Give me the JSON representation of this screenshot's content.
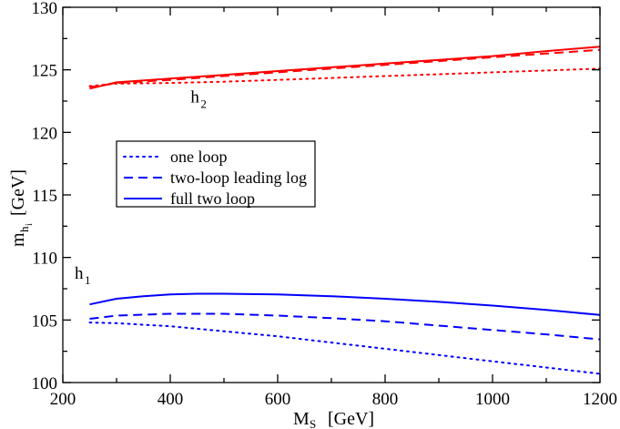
{
  "chart_data": {
    "type": "line",
    "xlabel": {
      "main": "M",
      "sub": "S",
      "unit": "[GeV]"
    },
    "ylabel": {
      "main": "m",
      "sub": "h",
      "subsub": "i",
      "unit": "[GeV]"
    },
    "xlim": [
      200,
      1200
    ],
    "ylim": [
      100,
      130
    ],
    "xticks": [
      200,
      400,
      600,
      800,
      1000,
      1200
    ],
    "yticks": [
      100,
      105,
      110,
      115,
      120,
      125,
      130
    ],
    "legend": {
      "placement": "center-left",
      "entries": [
        {
          "label": "one loop",
          "style": "dotted"
        },
        {
          "label": "two-loop leading log",
          "style": "dashed"
        },
        {
          "label": "full two loop",
          "style": "solid"
        }
      ]
    },
    "annotations": [
      {
        "main": "h",
        "sub": "2",
        "x": 438,
        "y": 122.4
      },
      {
        "main": "h",
        "sub": "1",
        "x": 222,
        "y": 108.3
      }
    ],
    "colors": {
      "h1": "#0000ff",
      "h2": "#ff0000"
    },
    "series": [
      {
        "group": "h2",
        "style": "dotted",
        "color": "#ff0000",
        "x": [
          250,
          300,
          400,
          500,
          600,
          700,
          800,
          900,
          1000,
          1100,
          1200
        ],
        "y": [
          123.7,
          123.9,
          123.95,
          124.05,
          124.2,
          124.35,
          124.5,
          124.65,
          124.8,
          124.95,
          125.1
        ]
      },
      {
        "group": "h2",
        "style": "dashed",
        "color": "#ff0000",
        "x": [
          250,
          300,
          400,
          500,
          600,
          700,
          800,
          900,
          1000,
          1100,
          1200
        ],
        "y": [
          123.6,
          123.95,
          124.2,
          124.5,
          124.8,
          125.1,
          125.4,
          125.7,
          126.0,
          126.3,
          126.6
        ]
      },
      {
        "group": "h2",
        "style": "solid",
        "color": "#ff0000",
        "x": [
          250,
          300,
          400,
          500,
          600,
          700,
          800,
          900,
          1000,
          1100,
          1200
        ],
        "y": [
          123.5,
          124.0,
          124.3,
          124.6,
          124.9,
          125.2,
          125.5,
          125.8,
          126.1,
          126.5,
          126.85
        ]
      },
      {
        "group": "h1",
        "style": "dotted",
        "color": "#0000ff",
        "x": [
          250,
          300,
          400,
          500,
          600,
          700,
          800,
          900,
          1000,
          1100,
          1200
        ],
        "y": [
          104.8,
          104.75,
          104.5,
          104.1,
          103.7,
          103.2,
          102.7,
          102.2,
          101.7,
          101.2,
          100.7
        ]
      },
      {
        "group": "h1",
        "style": "dashed",
        "color": "#0000ff",
        "x": [
          250,
          300,
          400,
          500,
          600,
          700,
          800,
          900,
          1000,
          1100,
          1200
        ],
        "y": [
          105.1,
          105.35,
          105.5,
          105.5,
          105.35,
          105.15,
          104.9,
          104.55,
          104.2,
          103.85,
          103.45
        ]
      },
      {
        "group": "h1",
        "style": "solid",
        "color": "#0000ff",
        "x": [
          250,
          300,
          350,
          400,
          450,
          500,
          600,
          700,
          800,
          900,
          1000,
          1100,
          1200
        ],
        "y": [
          106.25,
          106.7,
          106.9,
          107.05,
          107.1,
          107.1,
          107.05,
          106.9,
          106.7,
          106.45,
          106.15,
          105.8,
          105.4
        ]
      }
    ]
  }
}
